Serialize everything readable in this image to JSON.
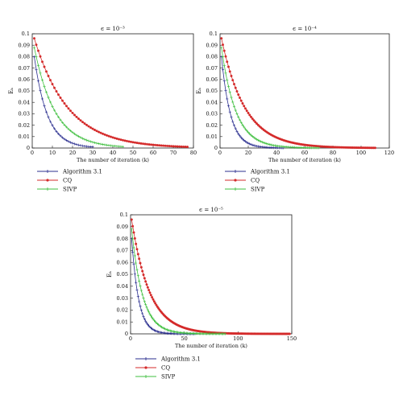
{
  "chart_data": [
    {
      "type": "line",
      "title": "ϵ = 10⁻³",
      "xlabel": "The number of iteration (k)",
      "ylabel": "Eₖ",
      "xlim": [
        0,
        80
      ],
      "ylim": [
        0,
        0.1
      ],
      "xticks": [
        "0",
        "10",
        "20",
        "30",
        "40",
        "50",
        "60",
        "70",
        "80"
      ],
      "yticks": [
        "0",
        "0.01",
        "0.02",
        "0.03",
        "0.04",
        "0.05",
        "0.06",
        "0.07",
        "0.08",
        "0.09",
        "0.1"
      ],
      "grid": false,
      "legend": "below",
      "series": [
        {
          "name": "Algorithm 3.1",
          "color": "#2b2f8f",
          "marker": "plus",
          "start": 0.08,
          "rate": 0.155,
          "n": 30
        },
        {
          "name": "CQ",
          "color": "#d42a2a",
          "marker": "star",
          "start": 0.096,
          "rate": 0.06,
          "n": 77
        },
        {
          "name": "SIVP",
          "color": "#3fbf3f",
          "marker": "plus",
          "start": 0.088,
          "rate": 0.098,
          "n": 45
        }
      ]
    },
    {
      "type": "line",
      "title": "ϵ = 10⁻⁴",
      "xlabel": "The number of iteration (k)",
      "ylabel": "Eₖ",
      "xlim": [
        0,
        120
      ],
      "ylim": [
        0,
        0.1
      ],
      "xticks": [
        "0",
        "20",
        "40",
        "60",
        "80",
        "100",
        "120"
      ],
      "yticks": [
        "0",
        "0.01",
        "0.02",
        "0.03",
        "0.04",
        "0.05",
        "0.06",
        "0.07",
        "0.08",
        "0.09",
        "0.1"
      ],
      "grid": false,
      "legend": "below",
      "series": [
        {
          "name": "Algorithm 3.1",
          "color": "#2b2f8f",
          "marker": "plus",
          "start": 0.08,
          "rate": 0.155,
          "n": 45
        },
        {
          "name": "CQ",
          "color": "#d42a2a",
          "marker": "star",
          "start": 0.096,
          "rate": 0.06,
          "n": 110
        },
        {
          "name": "SIVP",
          "color": "#3fbf3f",
          "marker": "plus",
          "start": 0.088,
          "rate": 0.098,
          "n": 70
        }
      ]
    },
    {
      "type": "line",
      "title": "ϵ = 10⁻⁵",
      "xlabel": "The number of iteration (k)",
      "ylabel": "Eₖ",
      "xlim": [
        0,
        150
      ],
      "ylim": [
        0,
        0.1
      ],
      "xticks": [
        "0",
        "50",
        "100",
        "150"
      ],
      "yticks": [
        "0",
        "0.01",
        "0.02",
        "0.03",
        "0.04",
        "0.05",
        "0.06",
        "0.07",
        "0.08",
        "0.09",
        "0.1"
      ],
      "grid": false,
      "legend": "below",
      "series": [
        {
          "name": "Algorithm 3.1",
          "color": "#2b2f8f",
          "marker": "plus",
          "start": 0.08,
          "rate": 0.155,
          "n": 60
        },
        {
          "name": "CQ",
          "color": "#d42a2a",
          "marker": "star",
          "start": 0.096,
          "rate": 0.06,
          "n": 148
        },
        {
          "name": "SIVP",
          "color": "#3fbf3f",
          "marker": "plus",
          "start": 0.088,
          "rate": 0.098,
          "n": 88
        }
      ]
    }
  ]
}
